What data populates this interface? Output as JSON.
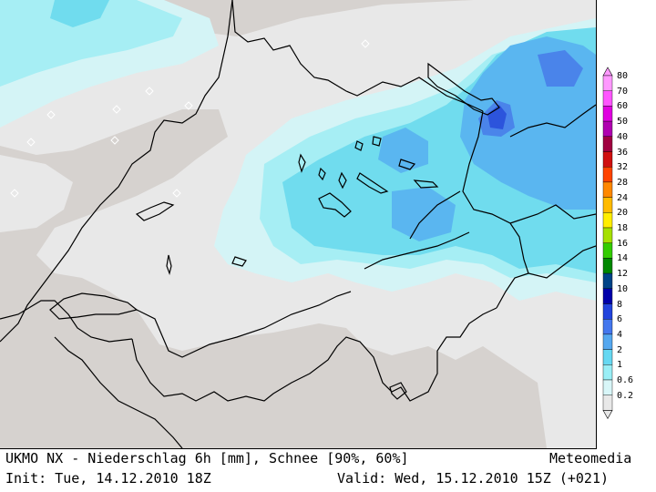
{
  "footer": {
    "title": "UKMO NX - Niederschlag 6h [mm], Schnee [90%, 60%]",
    "brand": "Meteomedia",
    "init": "Init: Tue, 14.12.2010 18Z",
    "valid": "Valid: Wed, 15.12.2010 15Z (+021)"
  },
  "legend": [
    {
      "label": "80",
      "color": "#ff99ff"
    },
    {
      "label": "70",
      "color": "#ff55ff"
    },
    {
      "label": "60",
      "color": "#e000e0"
    },
    {
      "label": "50",
      "color": "#b000b0"
    },
    {
      "label": "40",
      "color": "#a00040"
    },
    {
      "label": "36",
      "color": "#d01010"
    },
    {
      "label": "32",
      "color": "#ff4400"
    },
    {
      "label": "28",
      "color": "#ff8800"
    },
    {
      "label": "24",
      "color": "#ffbb00"
    },
    {
      "label": "20",
      "color": "#ffee00"
    },
    {
      "label": "18",
      "color": "#a6e000"
    },
    {
      "label": "16",
      "color": "#33cc00"
    },
    {
      "label": "14",
      "color": "#008800"
    },
    {
      "label": "12",
      "color": "#004488"
    },
    {
      "label": "10",
      "color": "#0000aa"
    },
    {
      "label": "8",
      "color": "#2244dd"
    },
    {
      "label": "6",
      "color": "#4477ee"
    },
    {
      "label": "4",
      "color": "#55a8f0"
    },
    {
      "label": "2",
      "color": "#66d8f2"
    },
    {
      "label": "1",
      "color": "#99eef6"
    },
    {
      "label": "0.6",
      "color": "#d8f6f8"
    },
    {
      "label": "0.2",
      "color": "#e8e8e8"
    }
  ],
  "colors": {
    "background_terrain": "#d6d2cf",
    "trace": "#e8e8e8"
  }
}
